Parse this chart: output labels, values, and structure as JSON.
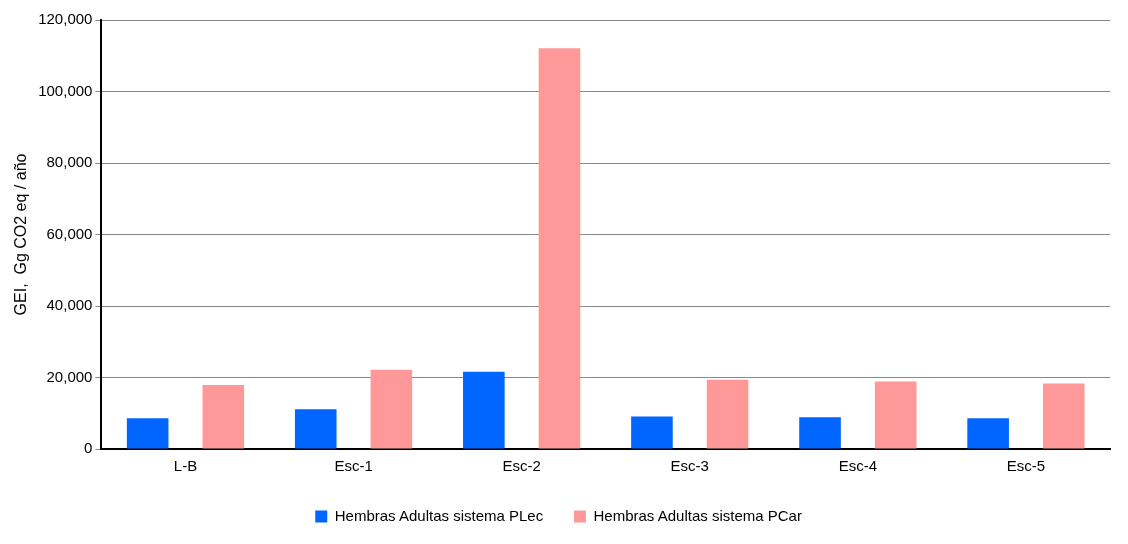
{
  "chart_data": {
    "type": "bar",
    "ylabel": "GEI,  Gg CO2 eq / año",
    "categories": [
      "L-B",
      "Esc-1",
      "Esc-2",
      "Esc-3",
      "Esc-4",
      "Esc-5"
    ],
    "series": [
      {
        "name": "Hembras Adultas sistema PLec",
        "color": "#0066ff",
        "values": [
          8600,
          11100,
          21600,
          9100,
          8900,
          8600
        ]
      },
      {
        "name": "Hembras Adultas sistema PCar",
        "color": "#ff9999",
        "values": [
          17900,
          22200,
          112100,
          19400,
          18900,
          18300
        ]
      }
    ],
    "ylim": [
      0,
      120000
    ],
    "yticks": [
      0,
      {
        "value": 20000,
        "label": "20,000"
      },
      {
        "value": 40000,
        "label": "40,000"
      },
      {
        "value": 60000,
        "label": "60,000"
      },
      {
        "value": 80000,
        "label": "80,000"
      },
      {
        "value": 100000,
        "label": "100,000"
      },
      {
        "value": 120000,
        "label": "120,000"
      }
    ],
    "grid": "y",
    "legend": "bottom"
  }
}
